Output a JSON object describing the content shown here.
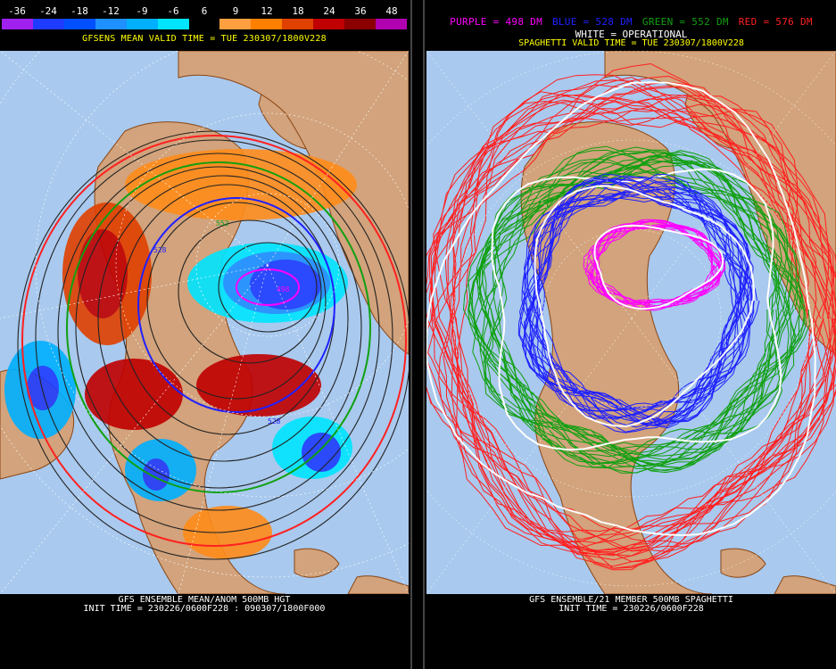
{
  "left_panel": {
    "scale": {
      "labels": [
        "-36",
        "-24",
        "-18",
        "-12",
        "-9",
        "-6",
        "6",
        "9",
        "12",
        "18",
        "24",
        "36",
        "48"
      ],
      "colors": [
        "#a020f0",
        "#1e3cff",
        "#0050ff",
        "#1e90ff",
        "#00b0ff",
        "#00e5ff",
        "#000000",
        "#ffa040",
        "#ff7f00",
        "#e04000",
        "#c00000",
        "#8b0000",
        "#b000b0"
      ]
    },
    "valid_title": "GFSENS MEAN VALID TIME = TUE 230307/1800V228",
    "contour_labels": [
      "528",
      "498",
      "552",
      "528"
    ],
    "footer_line1": "GFS ENSEMBLE MEAN/ANOM 500MB HGT",
    "footer_line2": "INIT TIME = 230226/0600F228 : 090307/1800F000"
  },
  "right_panel": {
    "legend": {
      "purple": "PURPLE = 498 DM",
      "blue": "BLUE = 528 DM",
      "green": "GREEN = 552 DM",
      "red": "RED = 576 DM",
      "white": "WHITE = OPERATIONAL"
    },
    "colors": {
      "purple": "#ff00ff",
      "blue": "#2020ff",
      "green": "#10a010",
      "red": "#ff2020",
      "white": "#ffffff"
    },
    "valid_title": "SPAGHETTI VALID TIME = TUE 230307/1800V228",
    "footer_line1": "GFS ENSEMBLE/21 MEMBER 500MB SPAGHETTI",
    "footer_line2": "INIT TIME = 230226/0600F228"
  },
  "map_colors": {
    "ocean": "#a9c9ee",
    "land": "#d2a37c",
    "coast": "#8b4513",
    "grid": "#ffffff"
  }
}
